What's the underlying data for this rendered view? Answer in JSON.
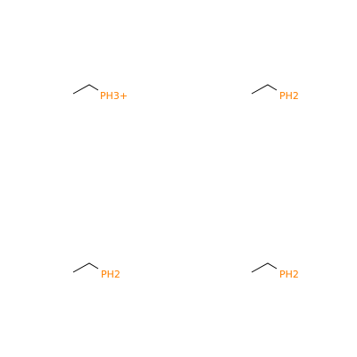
{
  "colors": {
    "background": "#ffffff",
    "bond": "#000000",
    "phosphorus": "#ff8000"
  },
  "molecules": [
    {
      "label": "PH3+"
    },
    {
      "label": "PH2"
    },
    {
      "label": "PH2"
    },
    {
      "label": "PH2"
    }
  ]
}
